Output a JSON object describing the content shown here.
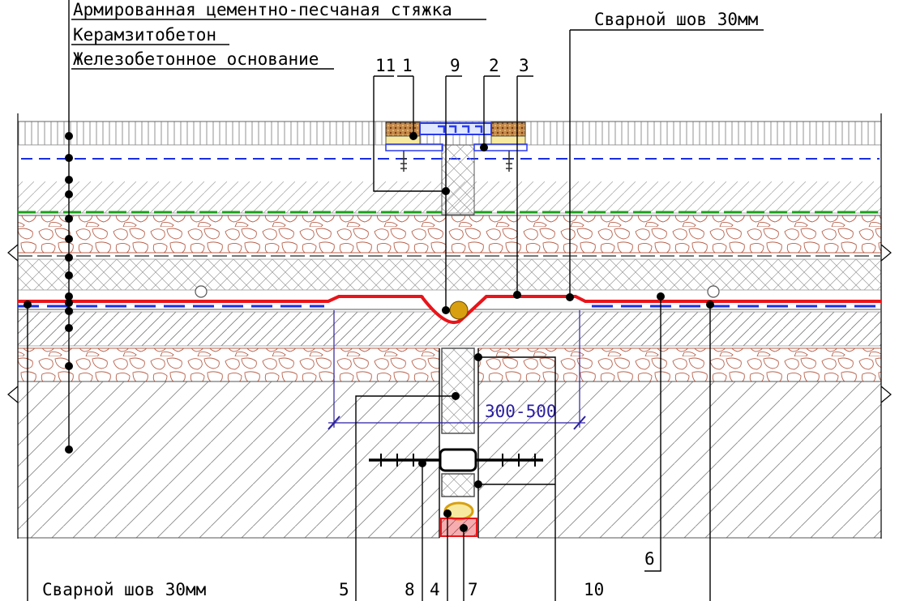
{
  "layers": {
    "screed": "Армированная цементно-песчаная стяжка",
    "expanded_clay_concrete": "Керамзитобетон",
    "rc_base": "Железобетонное основание"
  },
  "weld_top": "Сварной шов 30мм",
  "weld_bottom": "Сварной шов 30мм",
  "dimension": "300-500",
  "callouts": {
    "n11": "11",
    "n1": "1",
    "n9": "9",
    "n2": "2",
    "n3": "3",
    "n5": "5",
    "n8": "8",
    "n4": "4",
    "n7": "7",
    "n10": "10",
    "n6": "6"
  },
  "colors": {
    "dimension": "#2a1fa0",
    "membrane_red": "#e8141a",
    "membrane_blue": "#1a2ee0",
    "green_line": "#1aa01a",
    "gravel_stroke": "#b8604a",
    "cork": "#8a4a1a",
    "profile_blue": "#2a3aee",
    "cord_fill": "#d8a010"
  }
}
